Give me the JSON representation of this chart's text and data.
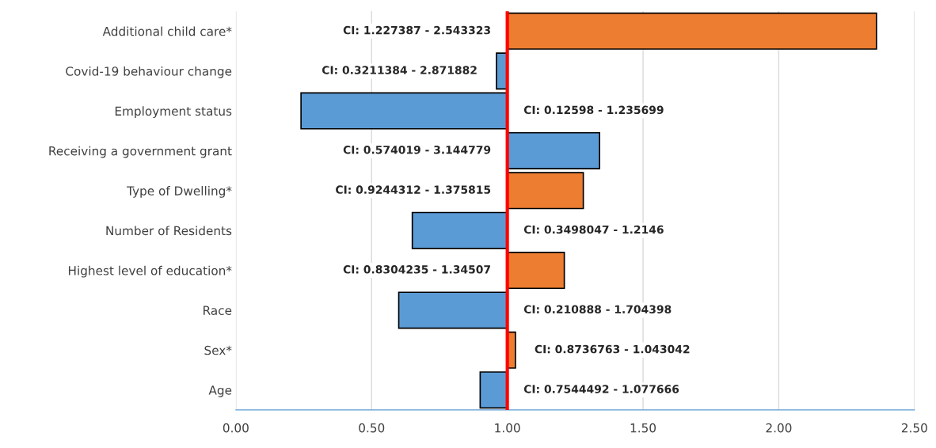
{
  "chart_data": {
    "type": "bar",
    "orientation": "horizontal",
    "categories": [
      "Additional child care*",
      "Covid-19 behaviour change",
      "Employment status",
      "Receiving a government grant",
      "Type of Dwelling*",
      "Number of Residents",
      "Highest level of education*",
      "Race",
      "Sex*",
      "Age"
    ],
    "base": [
      1,
      1,
      1,
      1,
      1,
      1,
      1,
      1,
      1,
      1
    ],
    "values": [
      1.36,
      -0.04,
      -0.76,
      0.34,
      0.28,
      -0.35,
      0.21,
      -0.4,
      0.03,
      -0.1
    ],
    "colors": [
      "#ed7d31",
      "#5b9bd5",
      "#5b9bd5",
      "#5b9bd5",
      "#ed7d31",
      "#5b9bd5",
      "#ed7d31",
      "#5b9bd5",
      "#ed7d31",
      "#5b9bd5"
    ],
    "xlim": [
      0,
      2.5
    ],
    "xticks": [
      {
        "value": 0,
        "label": "0.00"
      },
      {
        "value": 0.5,
        "label": "0.50"
      },
      {
        "value": 1,
        "label": "1.00"
      },
      {
        "value": 1.5,
        "label": "1.50"
      },
      {
        "value": 2,
        "label": "2.00"
      },
      {
        "value": 2.5,
        "label": "2.50"
      }
    ],
    "grid": "x",
    "ref_lines": [
      {
        "axis": "x",
        "value": 1,
        "color": "#ff0000",
        "line_style": "solid"
      }
    ],
    "annotations": [
      "CI: 1.227387 - 2.543323",
      "CI: 0.3211384 - 2.871882",
      "CI: 0.12598 - 1.235699",
      "CI: 0.574019 - 3.144779",
      "CI: 0.9244312 - 1.375815",
      "CI: 0.3498047 - 1.2146",
      "CI: 0.8304235 - 1.34507",
      "CI: 0.210888 - 1.704398",
      "CI: 0.8736763 - 1.043042",
      "CI: 0.7544492 - 1.077666"
    ]
  }
}
